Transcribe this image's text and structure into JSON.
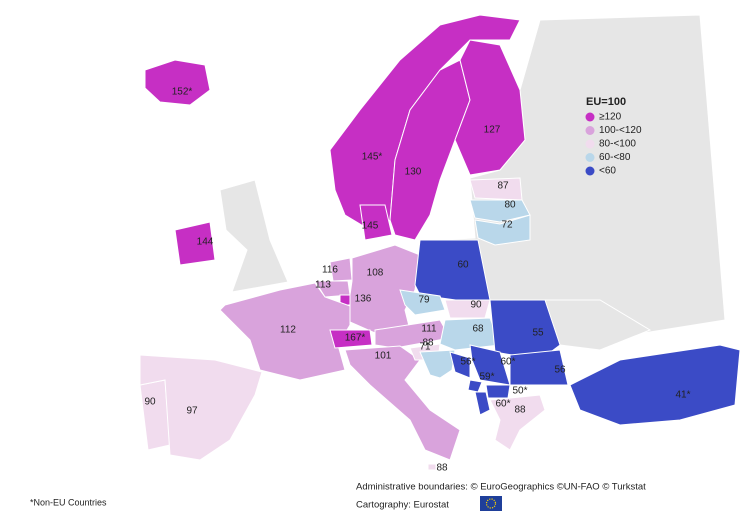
{
  "legend": {
    "title": "EU=100",
    "items": [
      {
        "label": "≥120",
        "color": "#c62fc4"
      },
      {
        "label": "100-<120",
        "color": "#d9a3dc"
      },
      {
        "label": "80-<100",
        "color": "#f1dcee"
      },
      {
        "label": "60-<80",
        "color": "#b9d7ea"
      },
      {
        "label": "<60",
        "color": "#3b4bc6"
      }
    ]
  },
  "regions": [
    {
      "label": "152*",
      "color": "#c62fc4"
    },
    {
      "label": "145*",
      "color": "#c62fc4"
    },
    {
      "label": "130",
      "color": "#c62fc4"
    },
    {
      "label": "127",
      "color": "#c62fc4"
    },
    {
      "label": "87",
      "color": "#f1dcee"
    },
    {
      "label": "80",
      "color": "#b9d7ea"
    },
    {
      "label": "72",
      "color": "#b9d7ea"
    },
    {
      "label": "144",
      "color": "#c62fc4"
    },
    {
      "label": "145",
      "color": "#c62fc4"
    },
    {
      "label": "116",
      "color": "#d9a3dc"
    },
    {
      "label": "113",
      "color": "#d9a3dc"
    },
    {
      "label": "136",
      "color": "#c62fc4"
    },
    {
      "label": "108",
      "color": "#d9a3dc"
    },
    {
      "label": "60",
      "color": "#3b4bc6"
    },
    {
      "label": "79",
      "color": "#b9d7ea"
    },
    {
      "label": "90",
      "color": "#f1dcee"
    },
    {
      "label": "112",
      "color": "#d9a3dc"
    },
    {
      "label": "167*",
      "color": "#c62fc4"
    },
    {
      "label": "111",
      "color": "#d9a3dc"
    },
    {
      "label": "101",
      "color": "#d9a3dc"
    },
    {
      "label": "88",
      "color": "#f1dcee"
    },
    {
      "label": "68",
      "color": "#b9d7ea"
    },
    {
      "label": "71",
      "color": "#b9d7ea"
    },
    {
      "label": "55",
      "color": "#3b4bc6"
    },
    {
      "label": "56*",
      "color": "#3b4bc6"
    },
    {
      "label": "60*",
      "color": "#3b4bc6"
    },
    {
      "label": "59*",
      "color": "#3b4bc6"
    },
    {
      "label": "50*",
      "color": "#3b4bc6"
    },
    {
      "label": "60*",
      "color": "#3b4bc6"
    },
    {
      "label": "56",
      "color": "#3b4bc6"
    },
    {
      "label": "88",
      "color": "#f1dcee"
    },
    {
      "label": "41*",
      "color": "#3b4bc6"
    },
    {
      "label": "90",
      "color": "#f1dcee"
    },
    {
      "label": "97",
      "color": "#f1dcee"
    },
    {
      "label": "88",
      "color": "#f1dcee"
    }
  ],
  "footer": {
    "note": "*Non-EU Countries",
    "boundaries": "Administrative boundaries: © EuroGeographics ©UN-FAO © Turkstat",
    "cartography": "Cartography: Eurostat"
  }
}
